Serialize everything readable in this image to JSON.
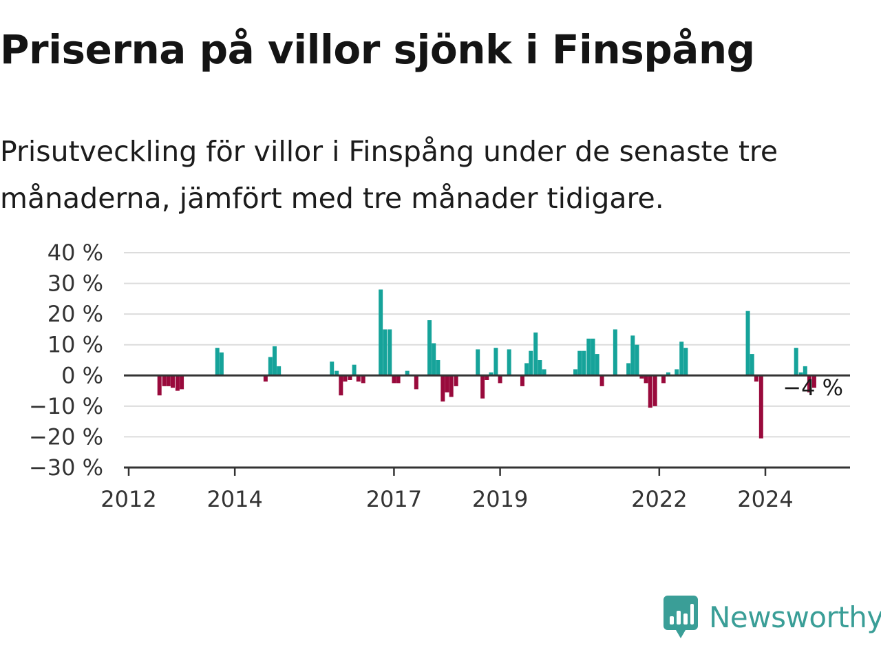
{
  "header": {
    "title": "Priserna på villor sjönk i Finspång",
    "subtitle": "Prisutveckling för villor i Finspång under de senaste tre månaderna, jämfört med tre månader tidigare."
  },
  "brand": {
    "name": "Newsworthy",
    "icon": "bar-chart-speech-bubble-icon",
    "color": "#3a9e97"
  },
  "chart_data": {
    "type": "bar",
    "title": "",
    "xlabel": "",
    "ylabel": "",
    "ylim": [
      -30,
      40
    ],
    "xlim": [
      2012,
      2025.9
    ],
    "grid": true,
    "legend": "none",
    "colors": {
      "positive": "#16a39a",
      "negative": "#990a3c",
      "grid": "#dcdcdc",
      "axis": "#333333"
    },
    "y_ticks": [
      {
        "value": 40,
        "label": "40 %"
      },
      {
        "value": 30,
        "label": "30 %"
      },
      {
        "value": 20,
        "label": "20 %"
      },
      {
        "value": 10,
        "label": "10 %"
      },
      {
        "value": 0,
        "label": "0 %"
      },
      {
        "value": -10,
        "label": "−10 %"
      },
      {
        "value": -20,
        "label": "−20 %"
      },
      {
        "value": -30,
        "label": "−30 %"
      }
    ],
    "x_ticks": [
      {
        "value": 2012,
        "label": "2012"
      },
      {
        "value": 2014,
        "label": "2014"
      },
      {
        "value": 2017,
        "label": "2017"
      },
      {
        "value": 2019,
        "label": "2019"
      },
      {
        "value": 2022,
        "label": "2022"
      },
      {
        "value": 2024,
        "label": "2024"
      }
    ],
    "annotation": {
      "x": 2025.46,
      "value": -4,
      "label": "−4 %"
    },
    "bars": [
      {
        "x": 2012.58,
        "value": -6.5
      },
      {
        "x": 2012.67,
        "value": -3.5
      },
      {
        "x": 2012.75,
        "value": -3.5
      },
      {
        "x": 2012.83,
        "value": -4
      },
      {
        "x": 2012.92,
        "value": -5
      },
      {
        "x": 2013.0,
        "value": -4.5
      },
      {
        "x": 2013.67,
        "value": 9
      },
      {
        "x": 2013.75,
        "value": 7.5
      },
      {
        "x": 2014.58,
        "value": -2
      },
      {
        "x": 2014.67,
        "value": 6
      },
      {
        "x": 2014.75,
        "value": 9.5
      },
      {
        "x": 2014.83,
        "value": 3
      },
      {
        "x": 2015.83,
        "value": 4.5
      },
      {
        "x": 2015.92,
        "value": 1.5
      },
      {
        "x": 2016.0,
        "value": -6.5
      },
      {
        "x": 2016.08,
        "value": -2
      },
      {
        "x": 2016.17,
        "value": -1.5
      },
      {
        "x": 2016.25,
        "value": 3.5
      },
      {
        "x": 2016.33,
        "value": -2
      },
      {
        "x": 2016.42,
        "value": -2.5
      },
      {
        "x": 2016.75,
        "value": 28
      },
      {
        "x": 2016.83,
        "value": 15
      },
      {
        "x": 2016.92,
        "value": 15
      },
      {
        "x": 2017.0,
        "value": -2.5
      },
      {
        "x": 2017.08,
        "value": -2.5
      },
      {
        "x": 2017.25,
        "value": 1.5
      },
      {
        "x": 2017.42,
        "value": -4.5
      },
      {
        "x": 2017.67,
        "value": 18
      },
      {
        "x": 2017.75,
        "value": 10.5
      },
      {
        "x": 2017.83,
        "value": 5
      },
      {
        "x": 2017.92,
        "value": -8.5
      },
      {
        "x": 2018.0,
        "value": -5.5
      },
      {
        "x": 2018.08,
        "value": -7
      },
      {
        "x": 2018.17,
        "value": -3.5
      },
      {
        "x": 2018.58,
        "value": 8.5
      },
      {
        "x": 2018.67,
        "value": -7.5
      },
      {
        "x": 2018.75,
        "value": -1.5
      },
      {
        "x": 2018.83,
        "value": 1
      },
      {
        "x": 2018.92,
        "value": 9
      },
      {
        "x": 2019.0,
        "value": -2.5
      },
      {
        "x": 2019.17,
        "value": 8.5
      },
      {
        "x": 2019.42,
        "value": -3.5
      },
      {
        "x": 2019.5,
        "value": 4
      },
      {
        "x": 2019.58,
        "value": 8
      },
      {
        "x": 2019.67,
        "value": 14
      },
      {
        "x": 2019.75,
        "value": 5
      },
      {
        "x": 2019.83,
        "value": 2
      },
      {
        "x": 2020.42,
        "value": 2
      },
      {
        "x": 2020.5,
        "value": 8
      },
      {
        "x": 2020.58,
        "value": 8
      },
      {
        "x": 2020.67,
        "value": 12
      },
      {
        "x": 2020.75,
        "value": 12
      },
      {
        "x": 2020.83,
        "value": 7
      },
      {
        "x": 2020.92,
        "value": -3.5
      },
      {
        "x": 2021.17,
        "value": 15
      },
      {
        "x": 2021.42,
        "value": 4
      },
      {
        "x": 2021.5,
        "value": 13
      },
      {
        "x": 2021.58,
        "value": 10
      },
      {
        "x": 2021.67,
        "value": -1
      },
      {
        "x": 2021.75,
        "value": -2.5
      },
      {
        "x": 2021.83,
        "value": -10.5
      },
      {
        "x": 2021.92,
        "value": -10
      },
      {
        "x": 2022.08,
        "value": -2.5
      },
      {
        "x": 2022.17,
        "value": 1
      },
      {
        "x": 2022.33,
        "value": 2
      },
      {
        "x": 2022.42,
        "value": 11
      },
      {
        "x": 2022.5,
        "value": 9
      },
      {
        "x": 2023.67,
        "value": 21
      },
      {
        "x": 2023.75,
        "value": 7
      },
      {
        "x": 2023.83,
        "value": -2
      },
      {
        "x": 2023.92,
        "value": -20.5
      },
      {
        "x": 2024.58,
        "value": 9
      },
      {
        "x": 2024.67,
        "value": 1
      },
      {
        "x": 2024.75,
        "value": 3
      },
      {
        "x": 2024.83,
        "value": -5.5
      },
      {
        "x": 2024.92,
        "value": -4
      }
    ]
  }
}
